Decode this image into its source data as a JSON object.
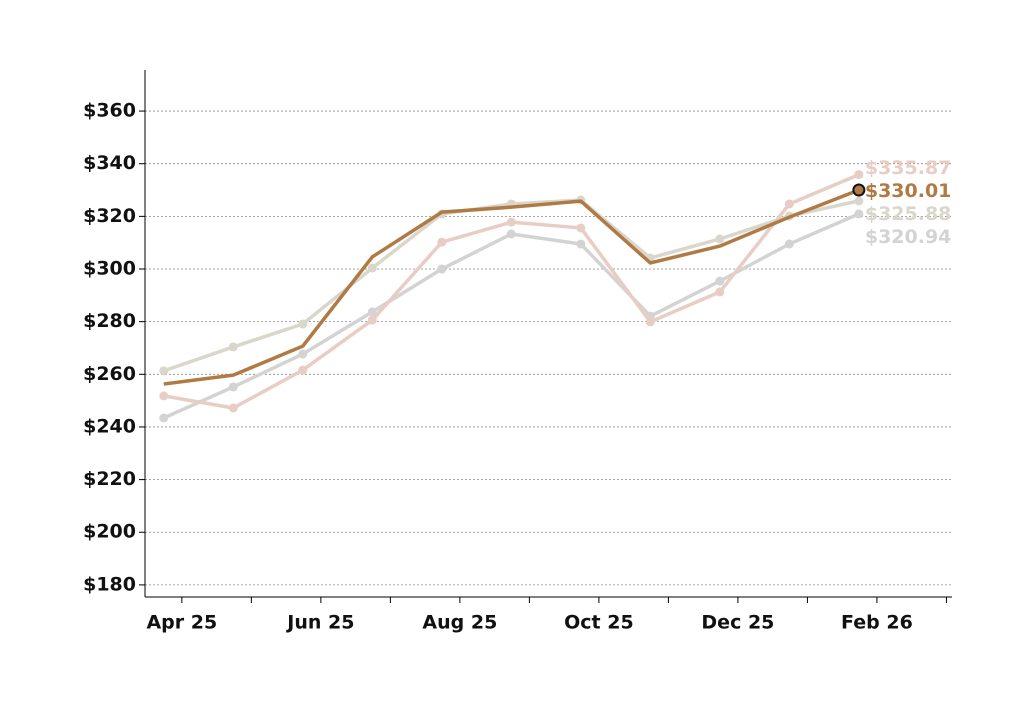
{
  "chart_data": {
    "type": "line",
    "x": [
      "2025-03",
      "2025-04",
      "2025-05",
      "2025-06",
      "2025-07",
      "2025-08",
      "2025-09",
      "2025-10",
      "2025-11",
      "2025-12",
      "2026-01"
    ],
    "series": [
      {
        "color": "#d3d3d3",
        "markers": true,
        "values": [
          243.4,
          255.2,
          267.7,
          283.7,
          300.0,
          313.3,
          309.5,
          282.1,
          295.4,
          309.5,
          320.94
        ],
        "value_labels": [
          null,
          null,
          null,
          null,
          null,
          null,
          null,
          null,
          null,
          null,
          "$320.94"
        ]
      },
      {
        "color": "#e8cdc5",
        "markers": true,
        "values": [
          251.8,
          247.2,
          261.6,
          280.6,
          310.2,
          317.8,
          315.6,
          279.9,
          291.3,
          324.7,
          335.87
        ],
        "value_labels": [
          null,
          null,
          null,
          null,
          null,
          null,
          null,
          null,
          null,
          null,
          "$335.87"
        ]
      },
      {
        "color": "#d9d7cb",
        "markers": true,
        "values": [
          261.3,
          270.4,
          279.1,
          300.4,
          320.9,
          324.7,
          326.2,
          304.2,
          311.4,
          320.1,
          325.88
        ],
        "value_labels": [
          null,
          null,
          null,
          null,
          null,
          null,
          null,
          null,
          null,
          null,
          "$325.88"
        ]
      },
      {
        "color": "#b07a45",
        "markers": false,
        "values": [
          256.3,
          259.7,
          270.7,
          304.6,
          321.6,
          323.5,
          325.8,
          302.3,
          308.7,
          319.7,
          330.01
        ],
        "value_labels": [
          null,
          null,
          null,
          null,
          null,
          null,
          null,
          null,
          null,
          null,
          "$330.01"
        ]
      }
    ],
    "xlim": [
      "2025-03",
      "2026-03"
    ],
    "xticks": [
      {
        "value": "2025-04",
        "label": "Apr 25"
      },
      {
        "value": "2025-06",
        "label": "Jun 25"
      },
      {
        "value": "2025-08",
        "label": "Aug 25"
      },
      {
        "value": "2025-10",
        "label": "Oct 25"
      },
      {
        "value": "2025-12",
        "label": "Dec 25"
      },
      {
        "value": "2026-02",
        "label": "Feb 26"
      }
    ],
    "xminor_ticks": [
      "2025-05",
      "2025-07",
      "2025-09",
      "2025-11",
      "2026-01",
      "2026-03"
    ],
    "ylim": [
      175.4,
      375.6
    ],
    "yticks": [
      {
        "value": 180,
        "label": "$180"
      },
      {
        "value": 200,
        "label": "$200"
      },
      {
        "value": 220,
        "label": "$220"
      },
      {
        "value": 240,
        "label": "$240"
      },
      {
        "value": 260,
        "label": "$260"
      },
      {
        "value": 280,
        "label": "$280"
      },
      {
        "value": 300,
        "label": "$300"
      },
      {
        "value": 320,
        "label": "$320"
      },
      {
        "value": 340,
        "label": "$340"
      },
      {
        "value": 360,
        "label": "$360"
      }
    ],
    "grid": true
  }
}
